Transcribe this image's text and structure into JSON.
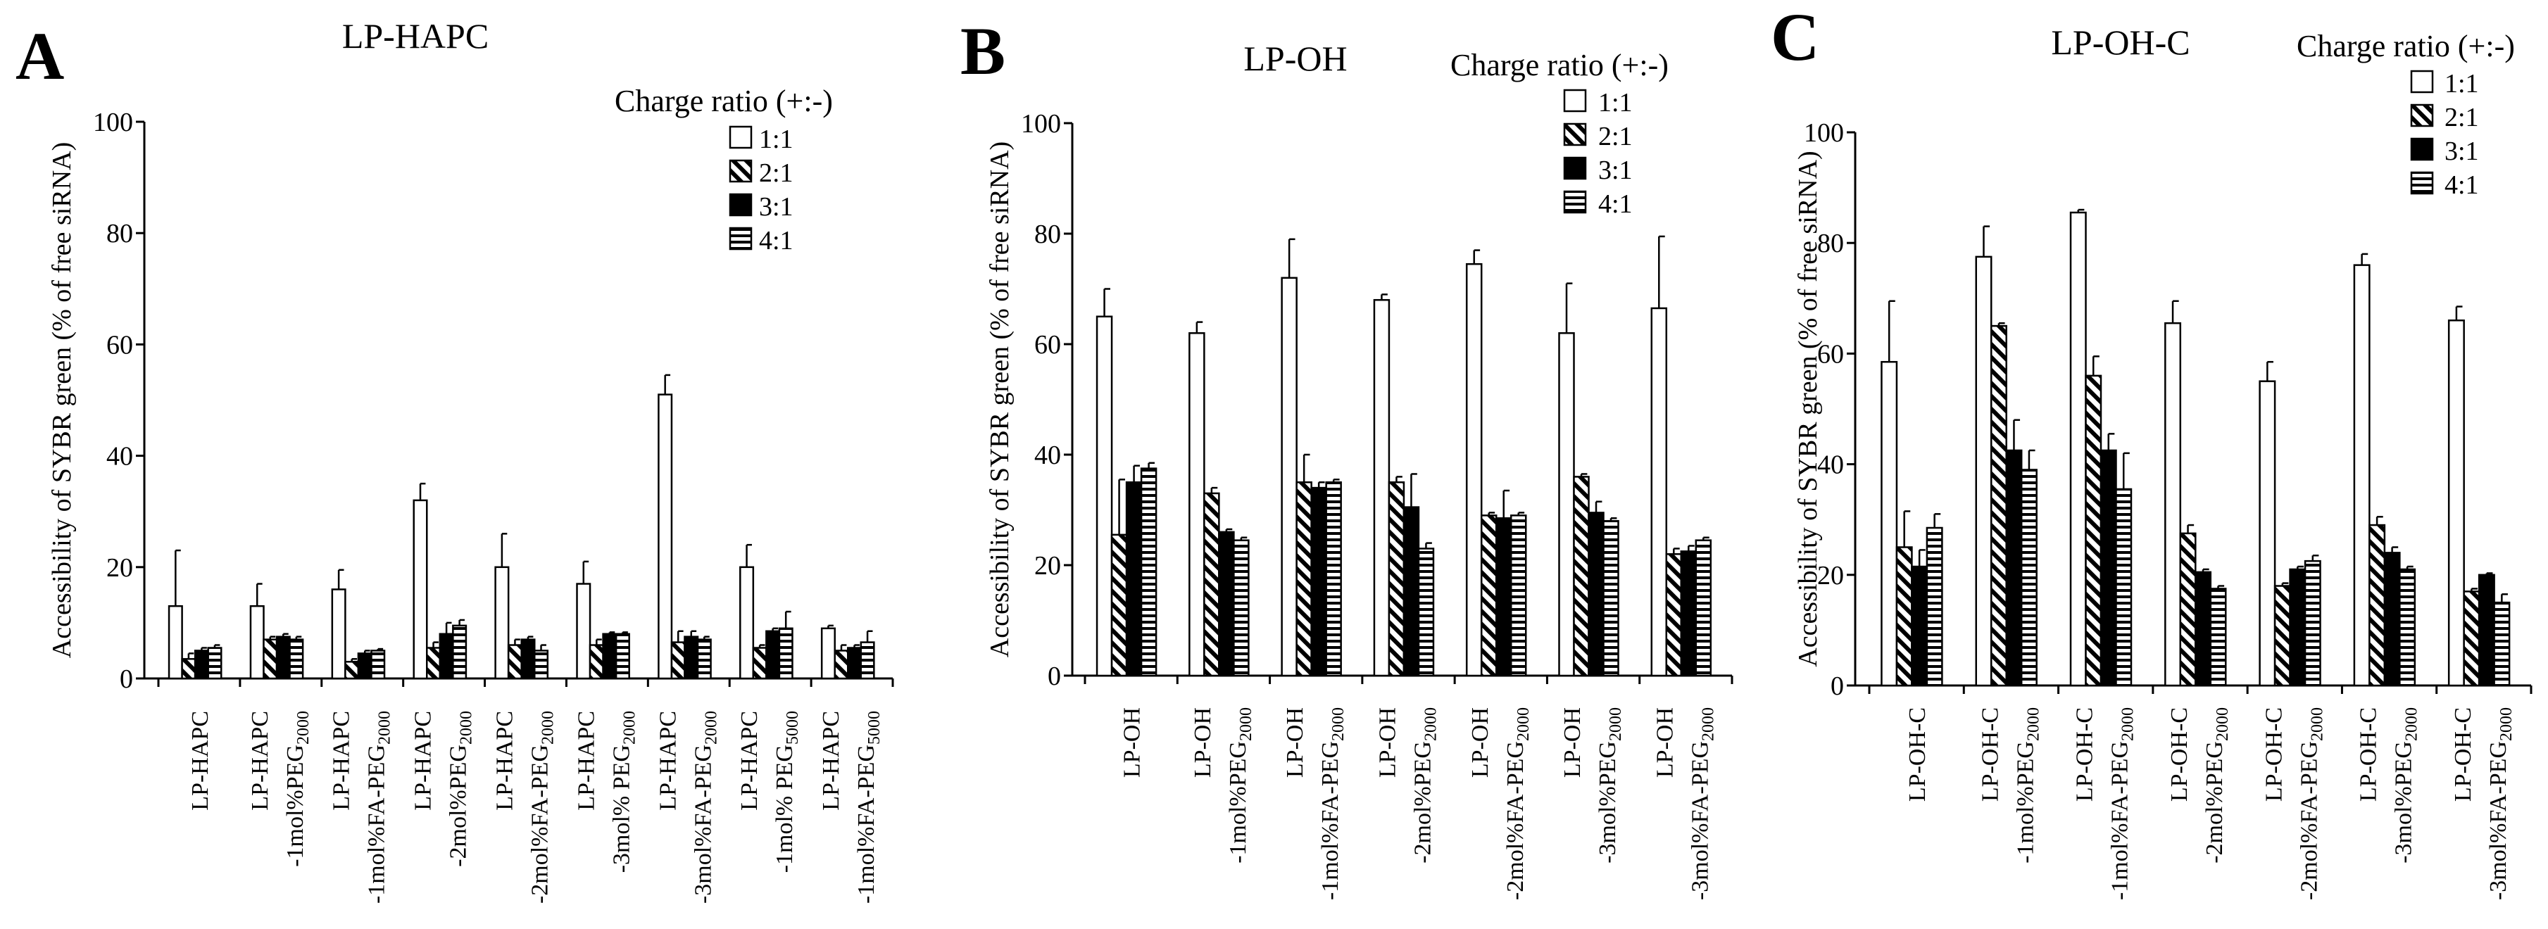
{
  "figure": {
    "legend_title": "Charge ratio (+:-)",
    "series": [
      {
        "name": "1:1",
        "fill": "white"
      },
      {
        "name": "2:1",
        "fill": "diagonal"
      },
      {
        "name": "3:1",
        "fill": "black"
      },
      {
        "name": "4:1",
        "fill": "horizontal"
      }
    ],
    "y_label": "Accessibility of SYBR green (% of free siRNA)"
  },
  "chart_data": [
    {
      "type": "bar",
      "letter": "A",
      "title": "LP-HAPC",
      "ylabel": "Accessibility of SYBR green (% of free siRNA)",
      "ylim": [
        0,
        100
      ],
      "yticks": [
        0,
        20,
        40,
        60,
        80,
        100
      ],
      "legend_title": "Charge ratio (+:-)",
      "categories": [
        [
          "LP-HAPC"
        ],
        [
          "LP-HAPC",
          "-1mol%PEG",
          "2000"
        ],
        [
          "LP-HAPC",
          "-1mol%FA-PEG",
          "2000"
        ],
        [
          "LP-HAPC",
          "-2mol%PEG",
          "2000"
        ],
        [
          "LP-HAPC",
          "-2mol%FA-PEG",
          "2000"
        ],
        [
          "LP-HAPC",
          "-3mol% PEG",
          "2000"
        ],
        [
          "LP-HAPC",
          "-3mol%FA-PEG",
          "2000"
        ],
        [
          "LP-HAPC",
          "-1mol% PEG",
          "5000"
        ],
        [
          "LP-HAPC",
          "-1mol%FA-PEG",
          "5000"
        ]
      ],
      "series": [
        {
          "name": "1:1",
          "values": [
            13,
            13,
            16,
            32,
            20,
            17,
            51,
            20,
            9
          ],
          "errors": [
            10,
            4,
            3.5,
            3,
            6,
            4,
            3.5,
            4,
            0.5
          ]
        },
        {
          "name": "2:1",
          "values": [
            3.5,
            7,
            3,
            5.5,
            6,
            6,
            6.5,
            5.5,
            5
          ],
          "errors": [
            1,
            0.5,
            0.5,
            1,
            1,
            1,
            2,
            0.5,
            1
          ]
        },
        {
          "name": "3:1",
          "values": [
            5,
            7.5,
            4.5,
            8,
            7,
            8,
            7.5,
            8.5,
            5.5
          ],
          "errors": [
            0.5,
            0.5,
            0.5,
            2,
            0.5,
            0.3,
            1,
            0.5,
            0.5
          ]
        },
        {
          "name": "4:1",
          "values": [
            5.5,
            7,
            5,
            9.5,
            5,
            8,
            7,
            9,
            6.5
          ],
          "errors": [
            0.5,
            0.5,
            0.3,
            1,
            1,
            0.3,
            0.5,
            3,
            2
          ]
        }
      ]
    },
    {
      "type": "bar",
      "letter": "B",
      "title": "LP-OH",
      "ylabel": "Accessibility of SYBR green (% of free siRNA)",
      "ylim": [
        0,
        100
      ],
      "yticks": [
        0,
        20,
        40,
        60,
        80,
        100
      ],
      "legend_title": "Charge ratio (+:-)",
      "categories": [
        [
          "LP-OH"
        ],
        [
          "LP-OH",
          "-1mol%PEG",
          "2000"
        ],
        [
          "LP-OH",
          "-1mol%FA-PEG",
          "2000"
        ],
        [
          "LP-OH",
          "-2mol%PEG",
          "2000"
        ],
        [
          "LP-OH",
          "-2mol%FA-PEG",
          "2000"
        ],
        [
          "LP-OH",
          "-3mol%PEG",
          "2000"
        ],
        [
          "LP-OH",
          "-3mol%FA-PEG",
          "2000"
        ]
      ],
      "series": [
        {
          "name": "1:1",
          "values": [
            65,
            62,
            72,
            68,
            74.5,
            62,
            66.5
          ],
          "errors": [
            5,
            2,
            7,
            1,
            2.5,
            9,
            13
          ]
        },
        {
          "name": "2:1",
          "values": [
            25.5,
            33,
            35,
            35,
            29,
            36,
            22
          ],
          "errors": [
            10,
            1,
            5,
            1,
            0.5,
            0.5,
            1
          ]
        },
        {
          "name": "3:1",
          "values": [
            35,
            26,
            34,
            30.5,
            28.5,
            29.5,
            22.5
          ],
          "errors": [
            3,
            0.5,
            1,
            6,
            5,
            2,
            1
          ]
        },
        {
          "name": "4:1",
          "values": [
            37.5,
            24.5,
            35,
            23,
            29,
            28,
            24.5
          ],
          "errors": [
            1,
            0.5,
            0.5,
            1,
            0.5,
            0.5,
            0.5
          ]
        }
      ]
    },
    {
      "type": "bar",
      "letter": "C",
      "title": "LP-OH-C",
      "ylabel": "Accessibility of SYBR green (% of free siRNA)",
      "ylim": [
        0,
        100
      ],
      "yticks": [
        0,
        20,
        40,
        60,
        80,
        100
      ],
      "legend_title": "Charge ratio (+:-)",
      "categories": [
        [
          "LP-OH-C"
        ],
        [
          "LP-OH-C",
          "-1mol%PEG",
          "2000"
        ],
        [
          "LP-OH-C",
          "-1mol%FA-PEG",
          "2000"
        ],
        [
          "LP-OH-C",
          "-2mol%PEG",
          "2000"
        ],
        [
          "LP-OH-C",
          "-2mol%FA-PEG",
          "2000"
        ],
        [
          "LP-OH-C",
          "-3mol%PEG",
          "2000"
        ],
        [
          "LP-OH-C",
          "-3mol%FA-PEG",
          "2000"
        ]
      ],
      "series": [
        {
          "name": "1:1",
          "values": [
            58.5,
            77.5,
            85.5,
            65.5,
            55,
            76,
            66
          ],
          "errors": [
            11,
            5.5,
            0.5,
            4,
            3.5,
            2,
            2.5
          ]
        },
        {
          "name": "2:1",
          "values": [
            25,
            65,
            56,
            27.5,
            18,
            29,
            17
          ],
          "errors": [
            6.5,
            0.5,
            3.5,
            1.5,
            0.5,
            1.5,
            0.5
          ]
        },
        {
          "name": "3:1",
          "values": [
            21.5,
            42.5,
            42.5,
            20.5,
            21,
            24,
            20
          ],
          "errors": [
            3,
            5.5,
            3,
            0.5,
            0.5,
            1,
            0.3
          ]
        },
        {
          "name": "4:1",
          "values": [
            28.5,
            39,
            35.5,
            17.5,
            22.5,
            21,
            15
          ],
          "errors": [
            2.5,
            3.5,
            6.5,
            0.5,
            1,
            0.5,
            1.5
          ]
        }
      ]
    }
  ]
}
